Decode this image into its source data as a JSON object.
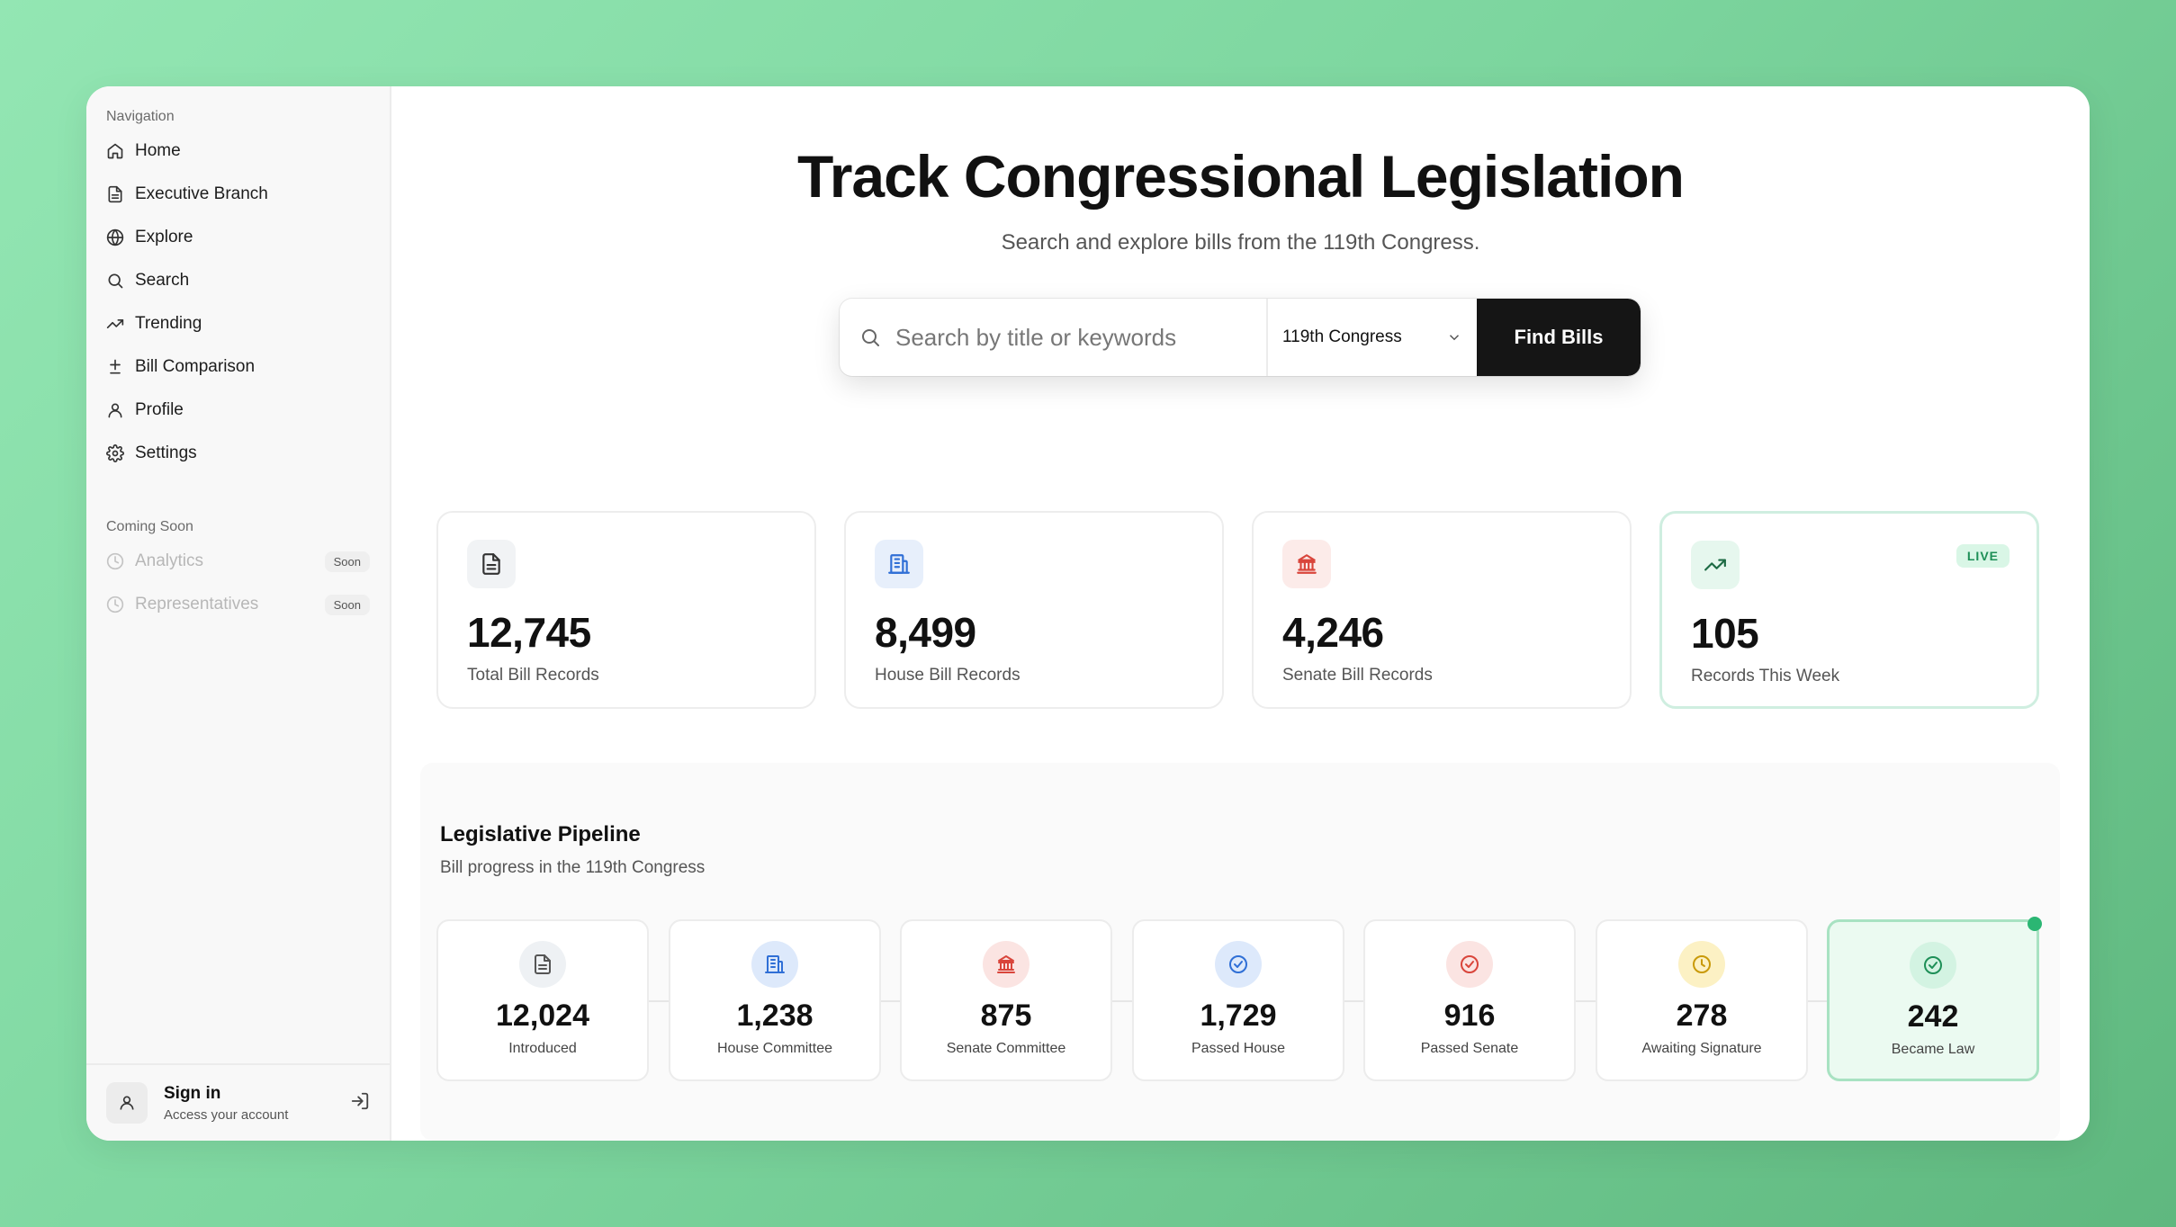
{
  "sidebar": {
    "nav_label": "Navigation",
    "items": [
      {
        "label": "Home",
        "icon": "home-icon"
      },
      {
        "label": "Executive Branch",
        "icon": "document-icon"
      },
      {
        "label": "Explore",
        "icon": "globe-icon"
      },
      {
        "label": "Search",
        "icon": "search-icon"
      },
      {
        "label": "Trending",
        "icon": "trending-icon"
      },
      {
        "label": "Bill Comparison",
        "icon": "plus-minus-icon"
      },
      {
        "label": "Profile",
        "icon": "user-icon"
      },
      {
        "label": "Settings",
        "icon": "gear-icon"
      }
    ],
    "coming_label": "Coming Soon",
    "coming_items": [
      {
        "label": "Analytics",
        "badge": "Soon",
        "icon": "clock-icon"
      },
      {
        "label": "Representatives",
        "badge": "Soon",
        "icon": "clock-icon"
      }
    ],
    "signin": {
      "title": "Sign in",
      "subtitle": "Access your account"
    }
  },
  "hero": {
    "title": "Track Congressional Legislation",
    "subtitle": "Search and explore bills from the 119th Congress."
  },
  "search": {
    "placeholder": "Search by title or keywords",
    "congress_selected": "119th Congress",
    "button_label": "Find Bills"
  },
  "stats": [
    {
      "value": "12,745",
      "label": "Total Bill Records",
      "icon": "document-icon",
      "accent": "#f1f3f5"
    },
    {
      "value": "8,499",
      "label": "House Bill Records",
      "icon": "building-icon",
      "accent": "#e7effb"
    },
    {
      "value": "4,246",
      "label": "Senate Bill Records",
      "icon": "capitol-icon",
      "accent": "#fcebe9"
    },
    {
      "value": "105",
      "label": "Records This Week",
      "icon": "trending-icon",
      "accent": "#e6f7ee",
      "badge": "LIVE"
    }
  ],
  "pipeline": {
    "title": "Legislative Pipeline",
    "subtitle": "Bill progress in the 119th Congress",
    "stages": [
      {
        "value": "12,024",
        "label": "Introduced",
        "icon": "document-icon"
      },
      {
        "value": "1,238",
        "label": "House Committee",
        "icon": "building-icon"
      },
      {
        "value": "875",
        "label": "Senate Committee",
        "icon": "capitol-icon"
      },
      {
        "value": "1,729",
        "label": "Passed House",
        "icon": "check-circle-icon"
      },
      {
        "value": "916",
        "label": "Passed Senate",
        "icon": "check-circle-icon"
      },
      {
        "value": "278",
        "label": "Awaiting Signature",
        "icon": "clock-icon"
      },
      {
        "value": "242",
        "label": "Became Law",
        "icon": "check-circle-icon"
      }
    ]
  },
  "colors": {
    "brand_dark": "#151515",
    "live_green": "#1e8f57",
    "house_blue": "#2f6fd6",
    "senate_red": "#d9453b",
    "awaiting_yellow": "#c99a0a"
  }
}
